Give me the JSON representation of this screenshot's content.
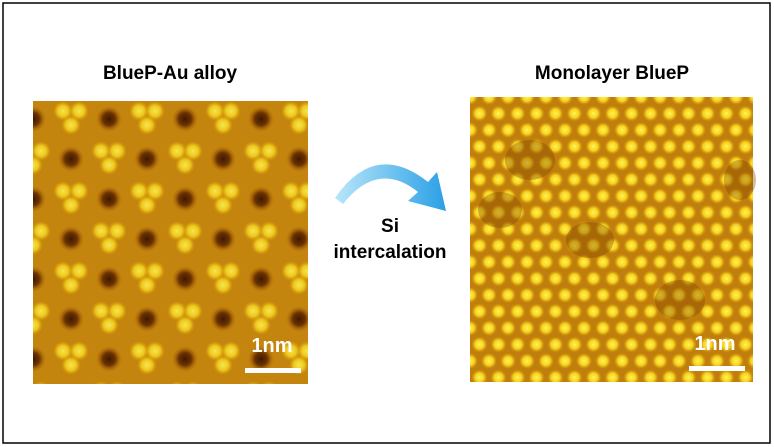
{
  "left_panel": {
    "title": "BlueP-Au alloy",
    "scale_bar": "1nm"
  },
  "process": {
    "line1": "Si",
    "line2": "intercalation"
  },
  "right_panel": {
    "title": "Monolayer BlueP",
    "scale_bar": "1nm"
  }
}
